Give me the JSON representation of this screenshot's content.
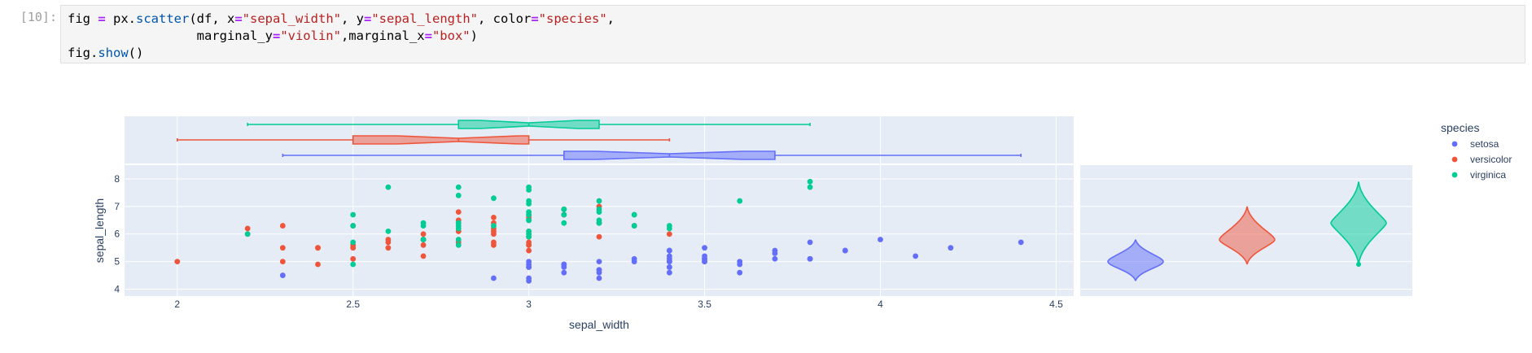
{
  "cell": {
    "prompt": "[10]:",
    "code_lines": [
      [
        {
          "t": "fig "
        },
        {
          "t": "=",
          "c": "kw-eq"
        },
        {
          "t": " px."
        },
        {
          "t": "scatter",
          "c": "fn"
        },
        {
          "t": "(df, x"
        },
        {
          "t": "=",
          "c": "kw-eq"
        },
        {
          "t": "\"sepal_width\"",
          "c": "str"
        },
        {
          "t": ", y"
        },
        {
          "t": "=",
          "c": "kw-eq"
        },
        {
          "t": "\"sepal_length\"",
          "c": "str"
        },
        {
          "t": ", color"
        },
        {
          "t": "=",
          "c": "kw-eq"
        },
        {
          "t": "\"species\"",
          "c": "str"
        },
        {
          "t": ","
        }
      ],
      [
        {
          "t": "                 marginal_y"
        },
        {
          "t": "=",
          "c": "kw-eq"
        },
        {
          "t": "\"violin\"",
          "c": "str"
        },
        {
          "t": ",marginal_x"
        },
        {
          "t": "=",
          "c": "kw-eq"
        },
        {
          "t": "\"box\"",
          "c": "str"
        },
        {
          "t": ")"
        }
      ],
      [
        {
          "t": "fig."
        },
        {
          "t": "show",
          "c": "fn"
        },
        {
          "t": "()"
        }
      ]
    ]
  },
  "chart_data": {
    "type": "scatter",
    "xlabel": "sepal_width",
    "ylabel": "sepal_length",
    "xlim": [
      1.85,
      4.55
    ],
    "ylim": [
      3.75,
      8.5
    ],
    "xticks": [
      2,
      2.5,
      3,
      3.5,
      4,
      4.5
    ],
    "yticks": [
      4,
      5,
      6,
      7,
      8
    ],
    "grid": true,
    "legend": {
      "title": "species",
      "placement": "right"
    },
    "series": [
      {
        "name": "setosa",
        "color": "#636efa",
        "points": [
          [
            3.5,
            5.1
          ],
          [
            3.0,
            4.9
          ],
          [
            3.2,
            4.7
          ],
          [
            3.1,
            4.6
          ],
          [
            3.6,
            5.0
          ],
          [
            3.9,
            5.4
          ],
          [
            3.4,
            4.6
          ],
          [
            3.4,
            5.0
          ],
          [
            2.9,
            4.4
          ],
          [
            3.1,
            4.9
          ],
          [
            3.7,
            5.4
          ],
          [
            3.4,
            4.8
          ],
          [
            3.0,
            4.8
          ],
          [
            3.0,
            4.3
          ],
          [
            4.0,
            5.8
          ],
          [
            4.4,
            5.7
          ],
          [
            3.9,
            5.4
          ],
          [
            3.5,
            5.1
          ],
          [
            3.8,
            5.7
          ],
          [
            3.8,
            5.1
          ],
          [
            3.4,
            5.4
          ],
          [
            3.7,
            5.1
          ],
          [
            3.6,
            4.6
          ],
          [
            3.3,
            5.1
          ],
          [
            3.4,
            4.8
          ],
          [
            3.0,
            5.0
          ],
          [
            3.4,
            5.0
          ],
          [
            3.5,
            5.2
          ],
          [
            3.4,
            5.2
          ],
          [
            3.2,
            4.7
          ],
          [
            3.1,
            4.8
          ],
          [
            3.4,
            5.4
          ],
          [
            4.1,
            5.2
          ],
          [
            4.2,
            5.5
          ],
          [
            3.1,
            4.9
          ],
          [
            3.2,
            5.0
          ],
          [
            3.5,
            5.5
          ],
          [
            3.6,
            4.9
          ],
          [
            3.0,
            4.4
          ],
          [
            3.4,
            5.1
          ],
          [
            3.5,
            5.0
          ],
          [
            2.3,
            4.5
          ],
          [
            3.2,
            4.4
          ],
          [
            3.5,
            5.0
          ],
          [
            3.8,
            5.1
          ],
          [
            3.0,
            4.8
          ],
          [
            3.8,
            5.1
          ],
          [
            3.2,
            4.6
          ],
          [
            3.7,
            5.3
          ],
          [
            3.3,
            5.0
          ]
        ],
        "box": {
          "min": 2.3,
          "q1": 3.1,
          "median": 3.4,
          "q3": 3.7,
          "max": 4.4
        },
        "violin": {
          "min": 4.3,
          "max": 5.8,
          "peak": 5.0
        }
      },
      {
        "name": "versicolor",
        "color": "#ef553b",
        "points": [
          [
            3.2,
            7.0
          ],
          [
            3.2,
            6.4
          ],
          [
            3.1,
            6.9
          ],
          [
            2.3,
            5.5
          ],
          [
            2.8,
            6.5
          ],
          [
            2.8,
            5.7
          ],
          [
            3.3,
            6.3
          ],
          [
            2.4,
            4.9
          ],
          [
            2.9,
            6.6
          ],
          [
            2.7,
            5.2
          ],
          [
            2.0,
            5.0
          ],
          [
            3.0,
            5.9
          ],
          [
            2.2,
            6.0
          ],
          [
            2.9,
            6.1
          ],
          [
            2.9,
            5.6
          ],
          [
            3.1,
            6.7
          ],
          [
            3.0,
            5.6
          ],
          [
            2.7,
            5.8
          ],
          [
            2.2,
            6.2
          ],
          [
            2.5,
            5.6
          ],
          [
            3.2,
            5.9
          ],
          [
            2.8,
            6.1
          ],
          [
            2.5,
            6.3
          ],
          [
            2.8,
            6.1
          ],
          [
            2.9,
            6.4
          ],
          [
            3.0,
            6.6
          ],
          [
            2.8,
            6.8
          ],
          [
            3.0,
            6.7
          ],
          [
            2.9,
            6.0
          ],
          [
            2.6,
            5.7
          ],
          [
            2.4,
            5.5
          ],
          [
            2.4,
            5.5
          ],
          [
            2.7,
            5.8
          ],
          [
            2.7,
            6.0
          ],
          [
            3.0,
            5.4
          ],
          [
            3.4,
            6.0
          ],
          [
            3.1,
            6.7
          ],
          [
            2.3,
            6.3
          ],
          [
            3.0,
            5.6
          ],
          [
            2.5,
            5.5
          ],
          [
            2.6,
            5.5
          ],
          [
            3.0,
            6.1
          ],
          [
            2.6,
            5.8
          ],
          [
            2.3,
            5.0
          ],
          [
            2.7,
            5.6
          ],
          [
            3.0,
            5.7
          ],
          [
            2.9,
            5.7
          ],
          [
            2.9,
            6.2
          ],
          [
            2.5,
            5.1
          ],
          [
            2.8,
            5.7
          ]
        ],
        "box": {
          "min": 2.0,
          "q1": 2.5,
          "median": 2.8,
          "q3": 3.0,
          "max": 3.4
        },
        "violin": {
          "min": 4.9,
          "max": 7.0,
          "peak": 5.8
        }
      },
      {
        "name": "virginica",
        "color": "#00cc96",
        "points": [
          [
            3.3,
            6.3
          ],
          [
            2.7,
            5.8
          ],
          [
            3.0,
            7.1
          ],
          [
            2.9,
            6.3
          ],
          [
            3.0,
            6.5
          ],
          [
            3.0,
            7.6
          ],
          [
            2.5,
            4.9
          ],
          [
            2.9,
            7.3
          ],
          [
            2.5,
            6.7
          ],
          [
            3.6,
            7.2
          ],
          [
            3.2,
            6.5
          ],
          [
            2.7,
            6.4
          ],
          [
            3.0,
            6.8
          ],
          [
            2.5,
            5.7
          ],
          [
            2.8,
            5.8
          ],
          [
            3.2,
            6.4
          ],
          [
            3.0,
            6.5
          ],
          [
            3.8,
            7.7
          ],
          [
            2.6,
            7.7
          ],
          [
            2.2,
            6.0
          ],
          [
            3.2,
            6.9
          ],
          [
            2.8,
            5.6
          ],
          [
            2.8,
            7.7
          ],
          [
            2.7,
            6.3
          ],
          [
            3.3,
            6.7
          ],
          [
            3.2,
            7.2
          ],
          [
            2.8,
            6.2
          ],
          [
            3.0,
            6.1
          ],
          [
            2.8,
            6.4
          ],
          [
            3.0,
            7.2
          ],
          [
            2.8,
            7.4
          ],
          [
            3.8,
            7.9
          ],
          [
            2.8,
            6.4
          ],
          [
            2.8,
            6.3
          ],
          [
            2.6,
            6.1
          ],
          [
            3.0,
            7.7
          ],
          [
            3.4,
            6.3
          ],
          [
            3.1,
            6.4
          ],
          [
            3.0,
            6.0
          ],
          [
            3.1,
            6.9
          ],
          [
            3.1,
            6.7
          ],
          [
            3.1,
            6.9
          ],
          [
            2.7,
            5.8
          ],
          [
            3.2,
            6.8
          ],
          [
            3.3,
            6.7
          ],
          [
            3.0,
            6.7
          ],
          [
            2.5,
            6.3
          ],
          [
            3.0,
            6.5
          ],
          [
            3.4,
            6.2
          ],
          [
            3.0,
            5.9
          ]
        ],
        "box": {
          "min": 2.2,
          "q1": 2.8,
          "median": 3.0,
          "q3": 3.2,
          "max": 3.8
        },
        "violin": {
          "min": 4.9,
          "max": 7.9,
          "peak": 6.4
        }
      }
    ]
  }
}
